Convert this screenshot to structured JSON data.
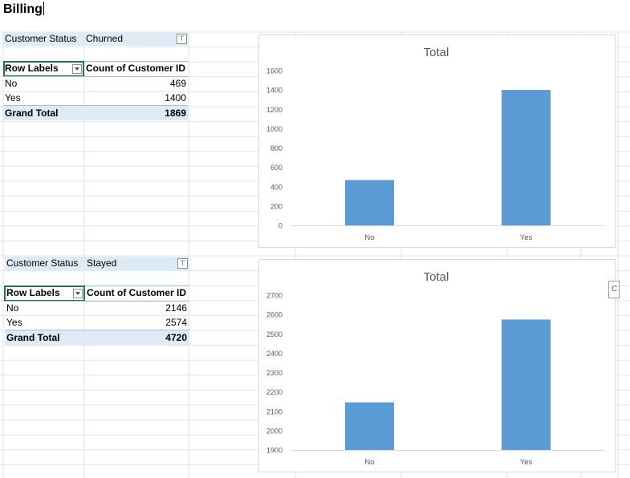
{
  "sheet": {
    "heading": "Billing"
  },
  "pivots": [
    {
      "filter_label": "Customer Status",
      "filter_value": "Churned",
      "row_labels_header": "Row Labels",
      "value_header": "Count of Customer ID",
      "rows": [
        {
          "label": "No",
          "value": "469"
        },
        {
          "label": "Yes",
          "value": "1400"
        }
      ],
      "total_label": "Grand Total",
      "total_value": "1869"
    },
    {
      "filter_label": "Customer Status",
      "filter_value": "Stayed",
      "row_labels_header": "Row Labels",
      "value_header": "Count of Customer ID",
      "rows": [
        {
          "label": "No",
          "value": "2146"
        },
        {
          "label": "Yes",
          "value": "2574"
        }
      ],
      "total_label": "Grand Total",
      "total_value": "4720"
    }
  ],
  "icons": {
    "filter": "filter-icon",
    "dropdown": "chevron-down-icon"
  },
  "side_tab": {
    "glyph": "C"
  },
  "colors": {
    "bar": "#5b9bd5",
    "header_band": "#ddebf7",
    "selection": "#217346"
  },
  "chart_data": [
    {
      "type": "bar",
      "title": "Total",
      "categories": [
        "No",
        "Yes"
      ],
      "values": [
        469,
        1400
      ],
      "ylim": [
        0,
        1600
      ],
      "yticks": [
        0,
        200,
        400,
        600,
        800,
        1000,
        1200,
        1400,
        1600
      ],
      "grid": false,
      "legend": "none"
    },
    {
      "type": "bar",
      "title": "Total",
      "categories": [
        "No",
        "Yes"
      ],
      "values": [
        2146,
        2574
      ],
      "ylim": [
        1900,
        2700
      ],
      "yticks": [
        1900,
        2000,
        2100,
        2200,
        2300,
        2400,
        2500,
        2600,
        2700
      ],
      "grid": false,
      "legend": "none"
    }
  ]
}
